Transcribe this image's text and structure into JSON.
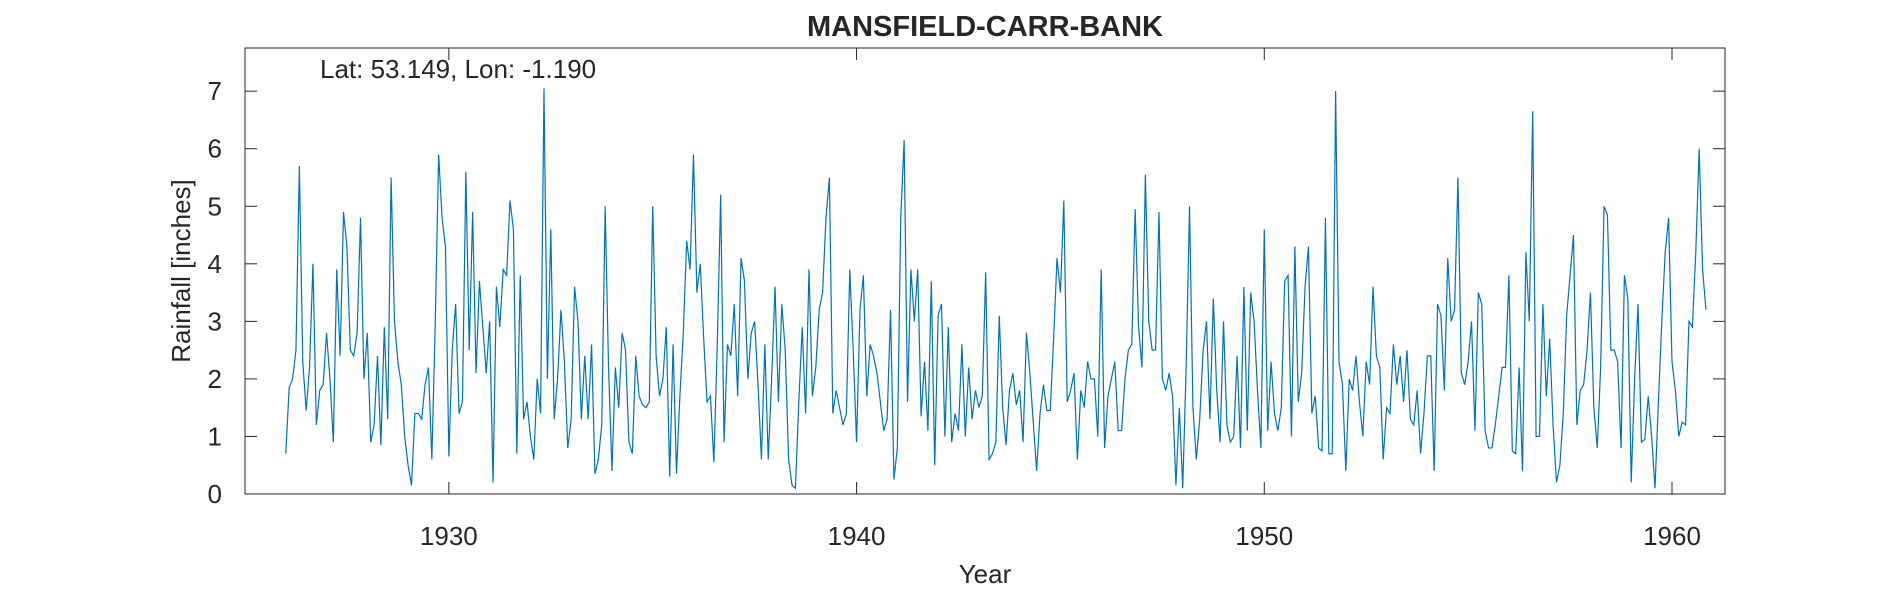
{
  "chart_data": {
    "type": "line",
    "title": "MANSFIELD-CARR-BANK",
    "annotation": "Lat: 53.149, Lon: -1.190",
    "xlabel": "Year",
    "ylabel": "Rainfall [inches]",
    "xlim": [
      1925.0,
      1961.3
    ],
    "ylim": [
      0,
      7.75
    ],
    "xticks": [
      1930,
      1940,
      1950,
      1960
    ],
    "yticks": [
      0,
      1,
      2,
      3,
      4,
      5,
      6,
      7
    ],
    "grid": false,
    "line_color": "#0072BD",
    "series": [
      {
        "x_start": 1926.0,
        "x_step": 0.0833333,
        "values": [
          0.7,
          1.85,
          2.0,
          2.5,
          5.7,
          2.3,
          1.45,
          2.2,
          4.0,
          1.2,
          1.8,
          1.9,
          2.8,
          2.0,
          0.9,
          3.9,
          2.4,
          4.9,
          4.3,
          2.5,
          2.4,
          2.8,
          4.8,
          2.0,
          2.8,
          0.9,
          1.2,
          2.4,
          0.85,
          2.9,
          1.3,
          5.5,
          3.0,
          2.3,
          1.9,
          1.0,
          0.5,
          0.15,
          1.4,
          1.4,
          1.3,
          1.9,
          2.2,
          0.6,
          3.0,
          5.9,
          4.8,
          4.3,
          0.65,
          2.5,
          3.3,
          1.4,
          1.6,
          5.6,
          2.5,
          4.9,
          2.1,
          3.7,
          2.9,
          2.1,
          3.0,
          0.2,
          3.6,
          2.9,
          3.9,
          3.8,
          5.1,
          4.6,
          0.7,
          3.8,
          1.3,
          1.6,
          1.0,
          0.6,
          2.0,
          1.4,
          7.05,
          2.0,
          4.6,
          1.3,
          2.0,
          3.2,
          2.3,
          0.8,
          1.3,
          3.6,
          3.0,
          1.3,
          2.4,
          1.3,
          2.6,
          0.35,
          0.6,
          1.2,
          5.0,
          2.2,
          0.4,
          2.2,
          1.5,
          2.8,
          2.5,
          0.9,
          0.7,
          2.4,
          1.7,
          1.55,
          1.5,
          1.6,
          5.0,
          2.4,
          1.7,
          2.0,
          2.9,
          0.3,
          2.6,
          0.35,
          1.7,
          2.8,
          4.4,
          3.9,
          5.9,
          3.5,
          4.0,
          2.7,
          1.6,
          1.7,
          0.55,
          2.6,
          5.2,
          0.9,
          2.6,
          2.4,
          3.3,
          1.7,
          4.1,
          3.7,
          2.0,
          2.8,
          3.0,
          1.9,
          0.6,
          2.6,
          0.6,
          2.0,
          3.6,
          1.6,
          3.3,
          2.5,
          0.6,
          0.15,
          0.1,
          1.6,
          2.9,
          1.4,
          3.9,
          1.7,
          2.2,
          3.2,
          3.5,
          4.8,
          5.5,
          1.4,
          1.8,
          1.5,
          1.2,
          1.4,
          3.9,
          2.5,
          0.9,
          3.2,
          3.8,
          1.7,
          2.6,
          2.4,
          2.1,
          1.6,
          1.1,
          1.3,
          3.2,
          0.25,
          0.8,
          4.8,
          6.15,
          1.6,
          3.9,
          3.0,
          3.9,
          1.35,
          2.3,
          1.1,
          3.7,
          0.5,
          3.1,
          3.3,
          1.0,
          2.9,
          0.9,
          1.4,
          1.1,
          2.6,
          1.0,
          2.2,
          1.3,
          1.8,
          1.5,
          1.7,
          3.85,
          0.6,
          0.7,
          0.9,
          3.1,
          1.5,
          0.85,
          1.8,
          2.1,
          1.55,
          1.8,
          0.9,
          2.8,
          2.1,
          1.25,
          0.4,
          1.4,
          1.9,
          1.45,
          1.45,
          2.7,
          4.1,
          3.5,
          5.1,
          1.6,
          1.8,
          2.1,
          0.6,
          1.8,
          1.5,
          2.3,
          2.0,
          2.0,
          1.0,
          3.9,
          0.8,
          1.7,
          2.0,
          2.3,
          1.1,
          1.1,
          2.0,
          2.5,
          2.6,
          4.95,
          2.9,
          2.2,
          5.55,
          3.0,
          2.5,
          2.5,
          4.9,
          2.0,
          1.8,
          2.1,
          1.7,
          0.15,
          1.5,
          0.1,
          2.2,
          5.0,
          1.5,
          0.6,
          1.3,
          2.5,
          3.0,
          1.3,
          3.4,
          1.8,
          0.9,
          3.0,
          1.2,
          0.9,
          1.0,
          2.4,
          0.8,
          3.6,
          1.1,
          3.5,
          3.0,
          1.8,
          0.8,
          4.6,
          1.1,
          2.3,
          1.4,
          1.1,
          1.5,
          3.7,
          3.8,
          1.0,
          4.3,
          1.6,
          2.1,
          3.6,
          4.3,
          1.4,
          1.7,
          0.8,
          0.75,
          4.8,
          0.7,
          0.7,
          7.0,
          2.3,
          1.9,
          0.4,
          2.0,
          1.8,
          2.4,
          1.6,
          1.0,
          2.3,
          1.9,
          3.6,
          2.4,
          2.2,
          0.6,
          1.5,
          1.4,
          2.6,
          1.9,
          2.4,
          1.6,
          2.5,
          1.3,
          1.2,
          1.8,
          0.7,
          1.4,
          2.4,
          2.4,
          0.4,
          3.3,
          3.1,
          1.8,
          4.1,
          3.0,
          3.2,
          5.5,
          2.1,
          1.9,
          2.3,
          3.0,
          1.1,
          3.5,
          3.3,
          1.1,
          0.8,
          0.8,
          1.2,
          1.7,
          2.2,
          2.2,
          3.8,
          0.75,
          0.7,
          2.2,
          0.4,
          4.2,
          3.0,
          6.65,
          1.0,
          1.0,
          3.3,
          1.7,
          2.7,
          1.2,
          0.2,
          0.5,
          1.4,
          3.1,
          3.8,
          4.5,
          1.2,
          1.8,
          1.9,
          2.5,
          3.5,
          1.5,
          0.8,
          2.2,
          5.0,
          4.85,
          2.5,
          2.5,
          2.3,
          0.8,
          3.8,
          3.4,
          0.2,
          2.0,
          3.3,
          0.9,
          0.95,
          1.7,
          1.0,
          0.1,
          1.6,
          3.0,
          4.2,
          4.8,
          2.3,
          1.8,
          1.0,
          1.25,
          1.2,
          3.0,
          2.9,
          4.2,
          6.0,
          3.9,
          3.2
        ]
      }
    ]
  }
}
